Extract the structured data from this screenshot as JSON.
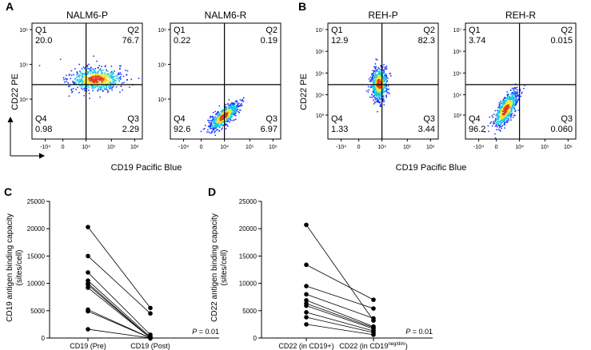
{
  "panels": [
    {
      "label": "A",
      "axis_labels": {
        "x": "CD19 Pacific Blue",
        "y": "CD22 PE"
      },
      "plots": [
        {
          "title": "NALM6-P",
          "quadrants": {
            "Q1": "20.0",
            "Q2": "76.7",
            "Q3": "2.29",
            "Q4": "0.98"
          },
          "y_ticks": [
            "10⁶",
            "10⁵",
            "10⁴"
          ],
          "x_ticks": [
            "-10⁴",
            "0",
            "10⁴",
            "10⁵",
            "10⁶"
          ],
          "cluster": {
            "cx": 0.58,
            "cy": 0.48,
            "rx": 0.22,
            "ry": 0.09,
            "rot": 0,
            "population": "CD19+ CD22+"
          }
        },
        {
          "title": "NALM6-R",
          "quadrants": {
            "Q1": "0.22",
            "Q2": "0.19",
            "Q3": "6.97",
            "Q4": "92.6"
          },
          "y_ticks": [
            "10⁶",
            "10⁵",
            "10⁴"
          ],
          "x_ticks": [
            "-10⁴",
            "0",
            "10⁴",
            "10⁵",
            "10⁶"
          ],
          "cluster": {
            "cx": 0.48,
            "cy": 0.8,
            "rx": 0.15,
            "ry": 0.055,
            "rot": -40,
            "population": "CD22 negative"
          }
        }
      ]
    },
    {
      "label": "B",
      "axis_labels": {
        "x": "CD19 Pacific Blue",
        "y": "CD22 PE"
      },
      "plots": [
        {
          "title": "REH-P",
          "quadrants": {
            "Q1": "12.9",
            "Q2": "82.3",
            "Q3": "3.44",
            "Q4": "1.33"
          },
          "y_ticks": [
            "10⁷",
            "10⁶",
            "10⁵",
            "10⁴",
            "10³"
          ],
          "x_ticks": [
            "-10⁴",
            "0",
            "10⁴",
            "10⁵",
            "10⁶"
          ],
          "cluster": {
            "cx": 0.46,
            "cy": 0.52,
            "rx": 0.065,
            "ry": 0.13,
            "rot": 0,
            "population": "CD19+ CD22+"
          }
        },
        {
          "title": "REH-R",
          "quadrants": {
            "Q1": "3.74",
            "Q2": "0.015",
            "Q3": "0.060",
            "Q4": "96.2"
          },
          "y_ticks": [
            "10⁷",
            "10⁶",
            "10⁵",
            "10⁴",
            "10³"
          ],
          "x_ticks": [
            "-10⁴",
            "0",
            "10⁴",
            "10⁵",
            "10⁶"
          ],
          "cluster": {
            "cx": 0.36,
            "cy": 0.74,
            "rx": 0.16,
            "ry": 0.065,
            "rot": -60,
            "population": "CD22 negative"
          }
        }
      ]
    }
  ],
  "chart_data": [
    {
      "panel": "C",
      "type": "scatter",
      "style": "paired before-after",
      "ylabel": "CD19 antigen binding capacity",
      "ylabel_units": "(sites/cell)",
      "categories": [
        "CD19 (Pre)",
        "CD19 (Post)"
      ],
      "ylim": [
        0,
        25000
      ],
      "yticks": [
        0,
        5000,
        10000,
        15000,
        20000,
        25000
      ],
      "pvalue_label": "P",
      "pvalue_text": " = 0.01",
      "pairs": [
        [
          20300,
          5500
        ],
        [
          15000,
          4500
        ],
        [
          12000,
          600
        ],
        [
          10500,
          200
        ],
        [
          10000,
          0
        ],
        [
          9700,
          0
        ],
        [
          9200,
          0
        ],
        [
          5200,
          0
        ],
        [
          4900,
          0
        ],
        [
          1600,
          0
        ]
      ]
    },
    {
      "panel": "D",
      "type": "scatter",
      "style": "paired before-after",
      "ylabel": "CD22 antigen binding capacity",
      "ylabel_units": "(sites/cell)",
      "categories": [
        "CD22 (in CD19+)",
        "CD22 (in CD19"
      ],
      "category_superscript": "neg/dim",
      "category_suffix": ")",
      "ylim": [
        0,
        25000
      ],
      "yticks": [
        0,
        5000,
        10000,
        15000,
        20000,
        25000
      ],
      "pvalue_label": "P",
      "pvalue_text": " = 0.01",
      "pairs": [
        [
          20700,
          3200
        ],
        [
          13400,
          7000
        ],
        [
          9500,
          5400
        ],
        [
          8000,
          3600
        ],
        [
          6900,
          2100
        ],
        [
          6300,
          1900
        ],
        [
          5900,
          1700
        ],
        [
          4700,
          1300
        ],
        [
          3800,
          1000
        ],
        [
          2500,
          600
        ]
      ]
    }
  ],
  "colors": {
    "axis": "#000000",
    "gridline": "#000000",
    "point": "#000000",
    "density_low": "#1f3cff",
    "density_mid": "#12c9e6",
    "density_high": "#f2e72e",
    "density_peak": "#e23a1e"
  }
}
